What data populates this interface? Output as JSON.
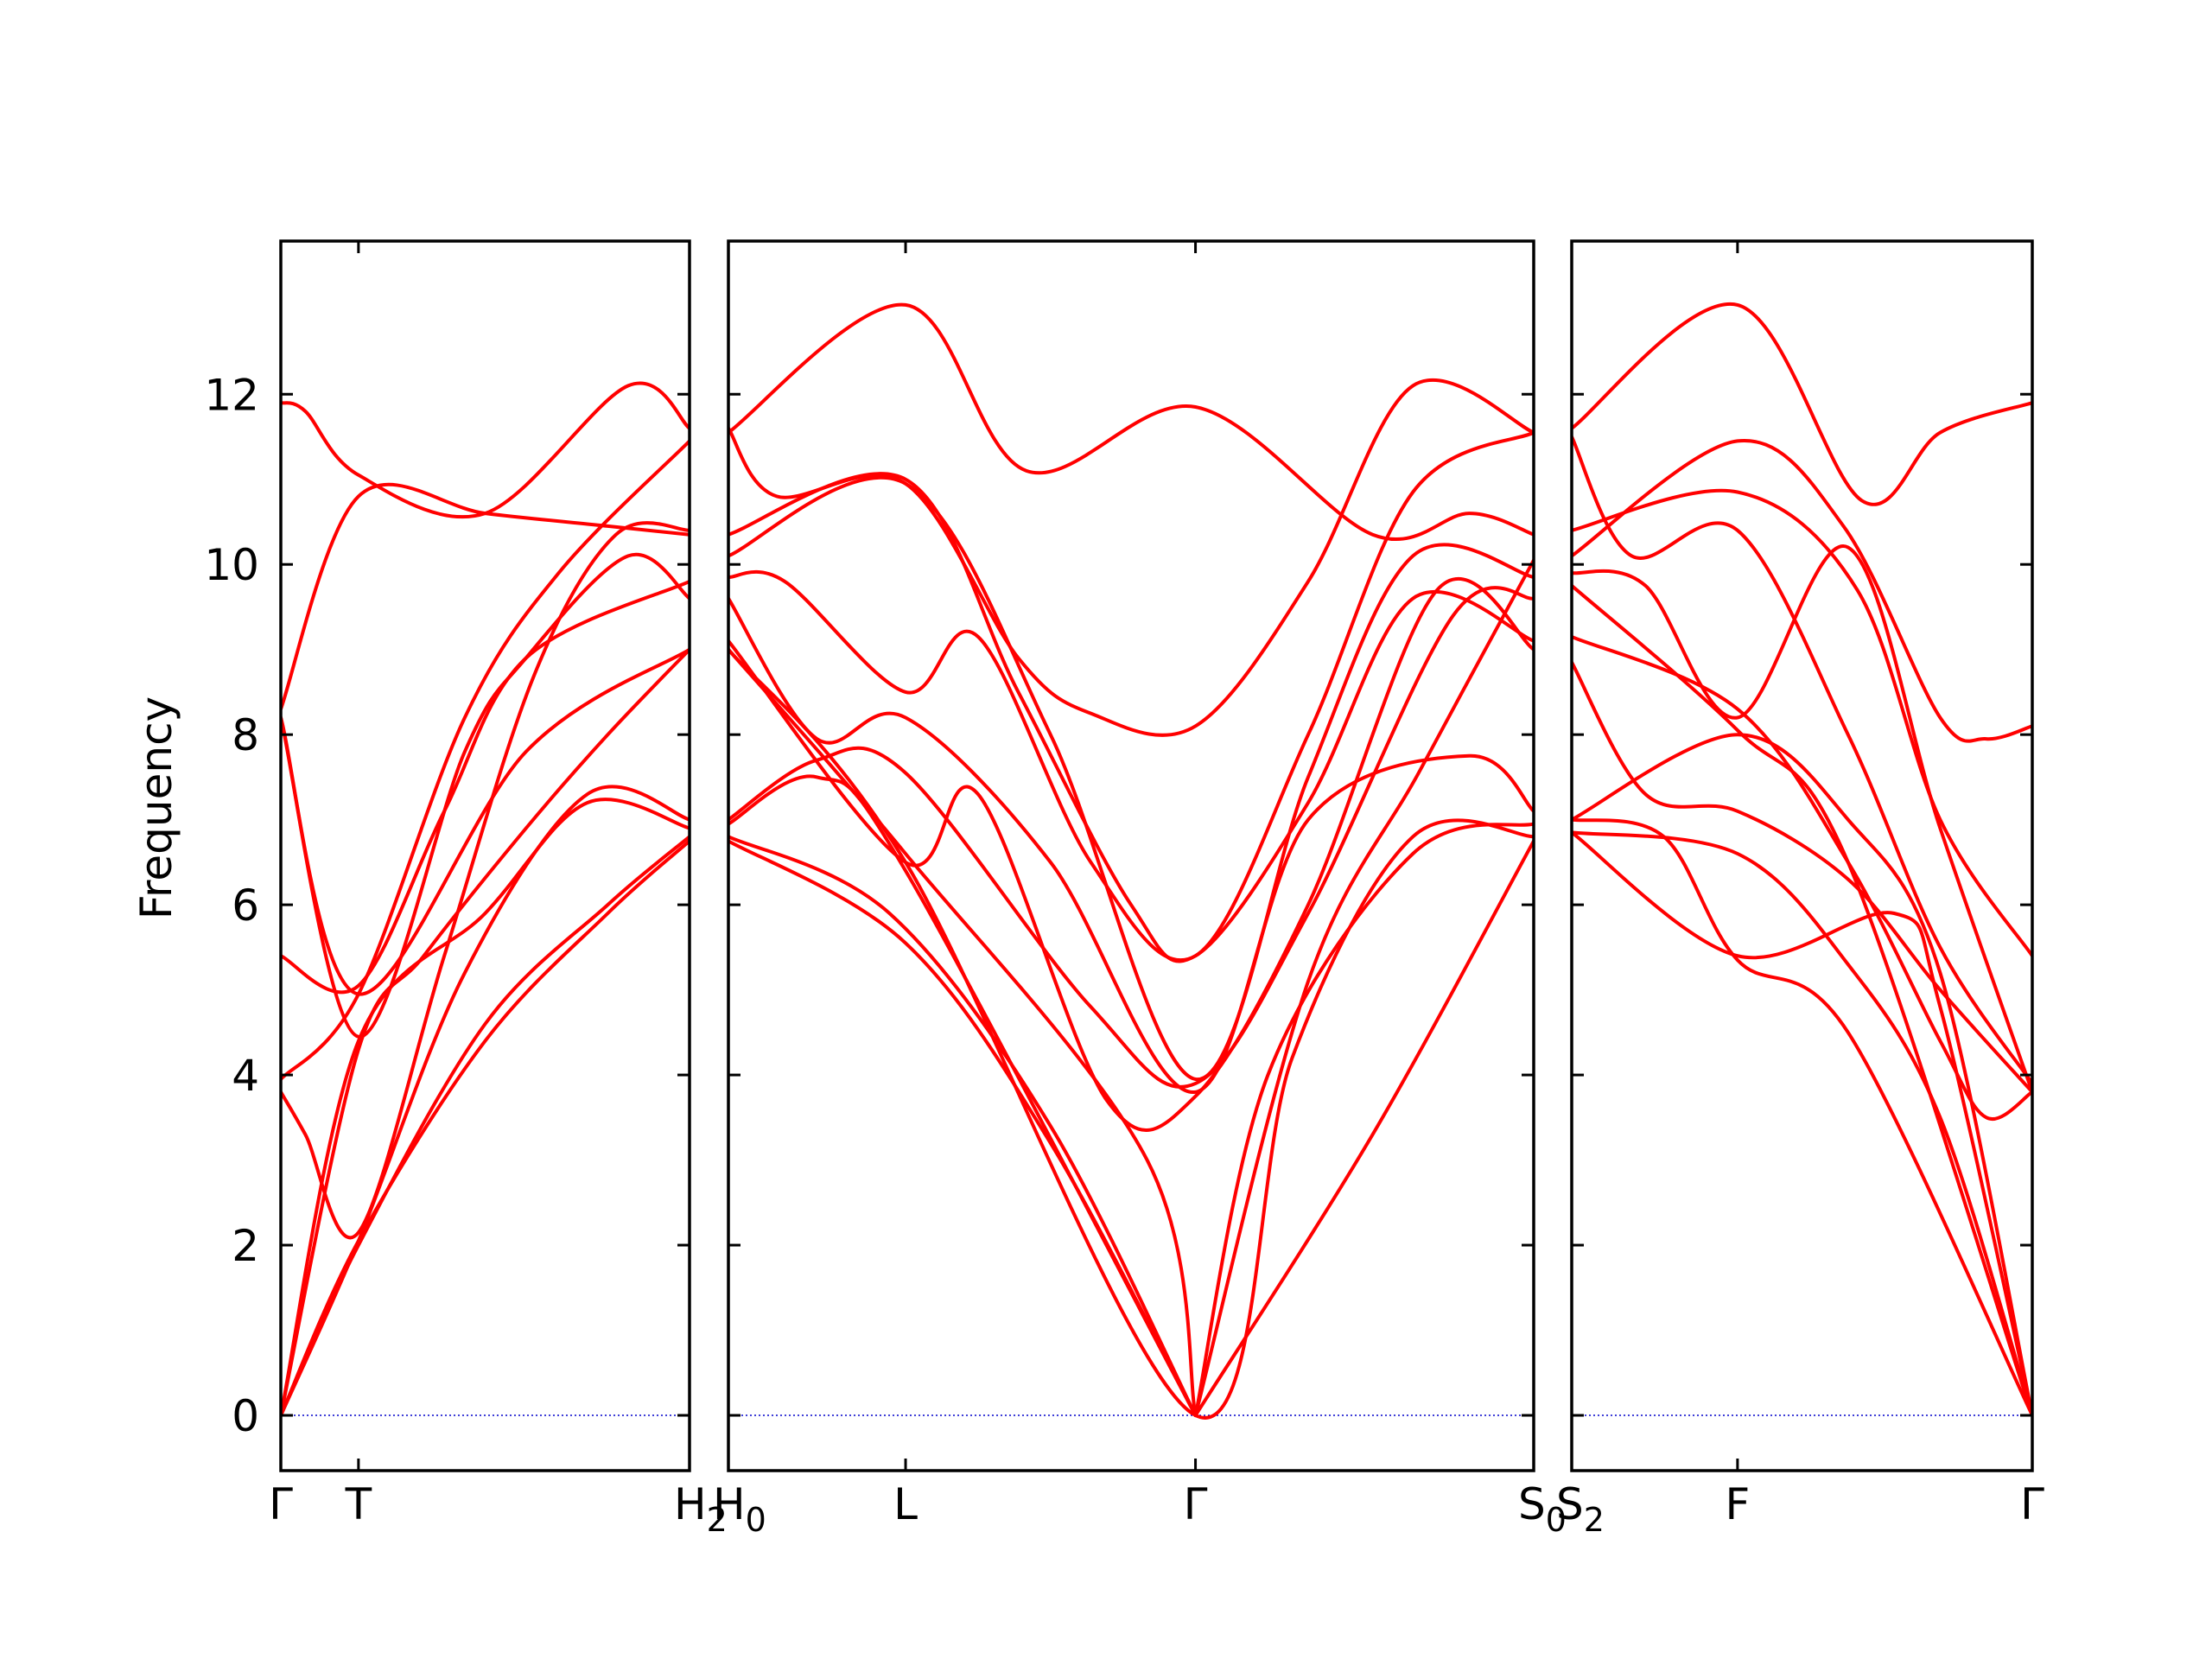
{
  "chart_data": {
    "type": "line",
    "ylabel": "Frequency",
    "ylim": [
      -0.65,
      13.8
    ],
    "y_ticks": [
      0,
      2,
      4,
      6,
      8,
      10,
      12
    ],
    "zero_line": true,
    "line_color": "#ff0000",
    "zero_line_color": "#0000cc",
    "panels": [
      {
        "x_labels": [
          {
            "text": "Γ",
            "sub": "",
            "t": 0.0
          },
          {
            "text": "T",
            "sub": "",
            "t": 0.19
          },
          {
            "text": "H",
            "sub": "2",
            "t": 1.0
          }
        ],
        "bands": [
          [
            [
              0,
              0
            ],
            [
              0.19,
              2.05
            ],
            [
              0.5,
              4.4
            ],
            [
              0.8,
              5.9
            ],
            [
              1.0,
              6.75
            ]
          ],
          [
            [
              0,
              0
            ],
            [
              0.19,
              4.3
            ],
            [
              0.35,
              5.4
            ],
            [
              0.6,
              6.9
            ],
            [
              0.8,
              8.0
            ],
            [
              1.0,
              9.0
            ]
          ],
          [
            [
              0,
              3.8
            ],
            [
              0.06,
              3.3
            ],
            [
              0.19,
              2.15
            ],
            [
              0.4,
              5.4
            ],
            [
              0.62,
              8.7
            ],
            [
              0.82,
              10.35
            ],
            [
              1.0,
              10.4
            ]
          ],
          [
            [
              0,
              3.95
            ],
            [
              0.19,
              4.95
            ],
            [
              0.45,
              8.2
            ],
            [
              0.68,
              9.9
            ],
            [
              1.0,
              11.45
            ]
          ],
          [
            [
              0,
              5.4
            ],
            [
              0.19,
              5.05
            ],
            [
              0.4,
              7.1
            ],
            [
              0.6,
              8.9
            ],
            [
              1.0,
              9.8
            ]
          ],
          [
            [
              0,
              8.3
            ],
            [
              0.19,
              10.8
            ],
            [
              0.5,
              10.6
            ],
            [
              0.8,
              10.45
            ],
            [
              1.0,
              10.35
            ]
          ],
          [
            [
              0,
              11.9
            ],
            [
              0.06,
              11.8
            ],
            [
              0.19,
              11.05
            ],
            [
              0.5,
              10.6
            ],
            [
              0.85,
              12.1
            ],
            [
              1.0,
              11.6
            ]
          ],
          [
            [
              0,
              8.2
            ],
            [
              0.19,
              4.45
            ],
            [
              0.45,
              7.8
            ],
            [
              0.6,
              8.9
            ],
            [
              0.85,
              10.1
            ],
            [
              1.0,
              9.6
            ]
          ],
          [
            [
              0,
              0
            ],
            [
              0.19,
              2.0
            ],
            [
              0.5,
              4.6
            ],
            [
              0.8,
              6.0
            ],
            [
              1.0,
              6.8
            ]
          ],
          [
            [
              0,
              0
            ],
            [
              0.19,
              2.05
            ],
            [
              0.45,
              5.2
            ],
            [
              0.75,
              7.3
            ],
            [
              1.0,
              7.0
            ]
          ],
          [
            [
              0,
              8.2
            ],
            [
              0.19,
              4.95
            ],
            [
              0.6,
              7.8
            ],
            [
              1.0,
              9.0
            ]
          ],
          [
            [
              0,
              0
            ],
            [
              0.19,
              4.4
            ],
            [
              0.5,
              5.9
            ],
            [
              0.75,
              7.2
            ],
            [
              1.0,
              6.9
            ]
          ]
        ]
      },
      {
        "x_labels": [
          {
            "text": "H",
            "sub": "0",
            "t": 0.0
          },
          {
            "text": "L",
            "sub": "",
            "t": 0.22
          },
          {
            "text": "Γ",
            "sub": "",
            "t": 0.58
          },
          {
            "text": "S",
            "sub": "0",
            "t": 1.0
          }
        ],
        "bands": [
          [
            [
              0,
              11.55
            ],
            [
              0.22,
              13.05
            ],
            [
              0.37,
              11.1
            ],
            [
              0.58,
              11.85
            ],
            [
              0.8,
              10.35
            ],
            [
              0.92,
              10.6
            ],
            [
              1.0,
              10.35
            ]
          ],
          [
            [
              0,
              11.6
            ],
            [
              0.06,
              10.8
            ],
            [
              0.22,
              10.95
            ],
            [
              0.36,
              8.9
            ],
            [
              0.45,
              8.25
            ],
            [
              0.58,
              8.1
            ],
            [
              0.72,
              9.8
            ],
            [
              0.85,
              12.1
            ],
            [
              1.0,
              11.55
            ]
          ],
          [
            [
              0,
              10.35
            ],
            [
              0.22,
              11.0
            ],
            [
              0.36,
              8.5
            ],
            [
              0.5,
              6.0
            ],
            [
              0.58,
              5.4
            ],
            [
              0.72,
              7.2
            ],
            [
              0.85,
              9.6
            ],
            [
              1.0,
              9.1
            ]
          ],
          [
            [
              0,
              10.1
            ],
            [
              0.22,
              10.95
            ],
            [
              0.4,
              8.0
            ],
            [
              0.58,
              3.95
            ],
            [
              0.72,
              7.5
            ],
            [
              0.85,
              10.1
            ],
            [
              1.0,
              9.85
            ]
          ],
          [
            [
              0,
              9.85
            ],
            [
              0.07,
              9.8
            ],
            [
              0.22,
              8.5
            ],
            [
              0.31,
              9.15
            ],
            [
              0.45,
              6.5
            ],
            [
              0.58,
              5.4
            ],
            [
              0.72,
              8.0
            ],
            [
              0.85,
              10.85
            ],
            [
              1.0,
              11.55
            ]
          ],
          [
            [
              0,
              9.6
            ],
            [
              0.11,
              7.95
            ],
            [
              0.22,
              8.2
            ],
            [
              0.4,
              6.5
            ],
            [
              0.58,
              3.8
            ],
            [
              0.72,
              7.0
            ],
            [
              0.92,
              7.75
            ],
            [
              1.0,
              7.1
            ]
          ],
          [
            [
              0,
              9.1
            ],
            [
              0.22,
              6.5
            ],
            [
              0.31,
              7.3
            ],
            [
              0.47,
              3.7
            ],
            [
              0.58,
              3.75
            ],
            [
              0.72,
              6.0
            ],
            [
              0.88,
              9.7
            ],
            [
              1.0,
              9.0
            ]
          ],
          [
            [
              0,
              7.0
            ],
            [
              0.11,
              7.7
            ],
            [
              0.22,
              7.55
            ],
            [
              0.45,
              4.8
            ],
            [
              0.58,
              3.9
            ],
            [
              0.72,
              5.9
            ],
            [
              0.9,
              9.4
            ],
            [
              1.0,
              9.6
            ]
          ],
          [
            [
              0,
              6.95
            ],
            [
              0.11,
              7.5
            ],
            [
              0.22,
              6.4
            ],
            [
              0.58,
              0.0
            ]
          ],
          [
            [
              0,
              6.8
            ],
            [
              0.2,
              5.9
            ],
            [
              0.4,
              3.4
            ],
            [
              0.58,
              0.0
            ]
          ],
          [
            [
              0,
              6.75
            ],
            [
              0.22,
              5.55
            ],
            [
              0.4,
              3.2
            ],
            [
              0.58,
              0.0
            ]
          ],
          [
            [
              0,
              9.0
            ],
            [
              0.22,
              6.6
            ],
            [
              0.52,
              3.0
            ],
            [
              0.58,
              0.0
            ]
          ],
          [
            [
              0,
              9.0
            ],
            [
              0.22,
              6.5
            ],
            [
              0.58,
              0.0
            ],
            [
              0.7,
              4.2
            ],
            [
              0.85,
              6.8
            ],
            [
              1.0,
              6.8
            ]
          ],
          [
            [
              0.58,
              0.0
            ],
            [
              0.67,
              4.0
            ],
            [
              0.85,
              6.6
            ],
            [
              1.0,
              6.95
            ]
          ],
          [
            [
              0.58,
              0.0
            ],
            [
              0.8,
              3.3
            ],
            [
              1.0,
              6.75
            ]
          ],
          [
            [
              0.58,
              0.0
            ],
            [
              0.72,
              5.1
            ],
            [
              0.86,
              7.6
            ],
            [
              1.0,
              10.05
            ]
          ]
        ]
      },
      {
        "x_labels": [
          {
            "text": "S",
            "sub": "2",
            "t": 0.0
          },
          {
            "text": "F",
            "sub": "",
            "t": 0.36
          },
          {
            "text": "Γ",
            "sub": "",
            "t": 1.0
          }
        ],
        "bands": [
          [
            [
              0,
              11.6
            ],
            [
              0.36,
              13.05
            ],
            [
              0.63,
              10.75
            ],
            [
              0.8,
              11.55
            ],
            [
              1.0,
              11.9
            ]
          ],
          [
            [
              0,
              10.1
            ],
            [
              0.36,
              11.45
            ],
            [
              0.59,
              10.45
            ],
            [
              0.8,
              8.2
            ],
            [
              0.9,
              7.95
            ],
            [
              1.0,
              8.1
            ]
          ],
          [
            [
              0,
              10.4
            ],
            [
              0.36,
              10.85
            ],
            [
              0.62,
              9.7
            ],
            [
              0.8,
              7.0
            ],
            [
              1.0,
              5.4
            ]
          ],
          [
            [
              0,
              11.5
            ],
            [
              0.13,
              10.1
            ],
            [
              0.36,
              10.4
            ],
            [
              0.6,
              8.0
            ],
            [
              0.8,
              5.5
            ],
            [
              1.0,
              3.9
            ]
          ],
          [
            [
              0,
              9.9
            ],
            [
              0.16,
              9.75
            ],
            [
              0.36,
              8.2
            ],
            [
              0.6,
              10.2
            ],
            [
              0.8,
              6.9
            ],
            [
              1.0,
              3.8
            ]
          ],
          [
            [
              0,
              9.15
            ],
            [
              0.36,
              8.3
            ],
            [
              0.6,
              6.5
            ],
            [
              0.8,
              4.4
            ],
            [
              0.9,
              3.5
            ],
            [
              1.0,
              3.8
            ]
          ],
          [
            [
              0,
              9.75
            ],
            [
              0.36,
              8.05
            ],
            [
              0.6,
              6.5
            ],
            [
              1.0,
              0.0
            ]
          ],
          [
            [
              0,
              8.85
            ],
            [
              0.16,
              7.3
            ],
            [
              0.36,
              7.1
            ],
            [
              0.6,
              6.3
            ],
            [
              0.8,
              5.0
            ],
            [
              1.0,
              3.8
            ]
          ],
          [
            [
              0,
              7.0
            ],
            [
              0.36,
              8.0
            ],
            [
              0.6,
              7.0
            ],
            [
              0.8,
              5.2
            ],
            [
              1.0,
              0.0
            ]
          ],
          [
            [
              0,
              6.85
            ],
            [
              0.36,
              6.6
            ],
            [
              0.6,
              5.3
            ],
            [
              0.8,
              3.5
            ],
            [
              1.0,
              0.0
            ]
          ],
          [
            [
              0,
              6.85
            ],
            [
              0.36,
              5.4
            ],
            [
              0.7,
              5.9
            ],
            [
              0.8,
              4.8
            ],
            [
              1.0,
              0.0
            ]
          ],
          [
            [
              0,
              7.0
            ],
            [
              0.2,
              6.8
            ],
            [
              0.36,
              5.35
            ],
            [
              0.6,
              4.5
            ],
            [
              1.0,
              0.0
            ]
          ]
        ]
      }
    ]
  }
}
